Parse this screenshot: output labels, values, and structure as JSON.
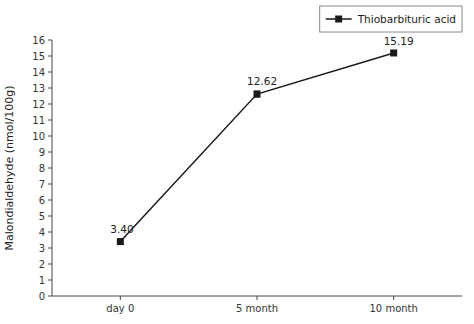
{
  "chart_data": {
    "type": "line",
    "ylabel": "Malondialdehyde (nmol/100g)",
    "categories": [
      "day 0",
      "5 month",
      "10 month"
    ],
    "series": [
      {
        "name": "Thiobarbituric acid",
        "color": "#1a1a1a",
        "marker": "square",
        "values": [
          3.4,
          12.62,
          15.19
        ],
        "errors": [
          0.15,
          0.18,
          0.12
        ],
        "value_labels": [
          "3.40",
          "12.62",
          "15.19"
        ]
      }
    ],
    "ylim": [
      0,
      16
    ],
    "yticks": [
      0,
      1,
      2,
      3,
      4,
      5,
      6,
      7,
      8,
      9,
      10,
      11,
      12,
      13,
      14,
      15,
      16
    ],
    "data_labels": true,
    "legend": "upper right",
    "grid": false
  }
}
